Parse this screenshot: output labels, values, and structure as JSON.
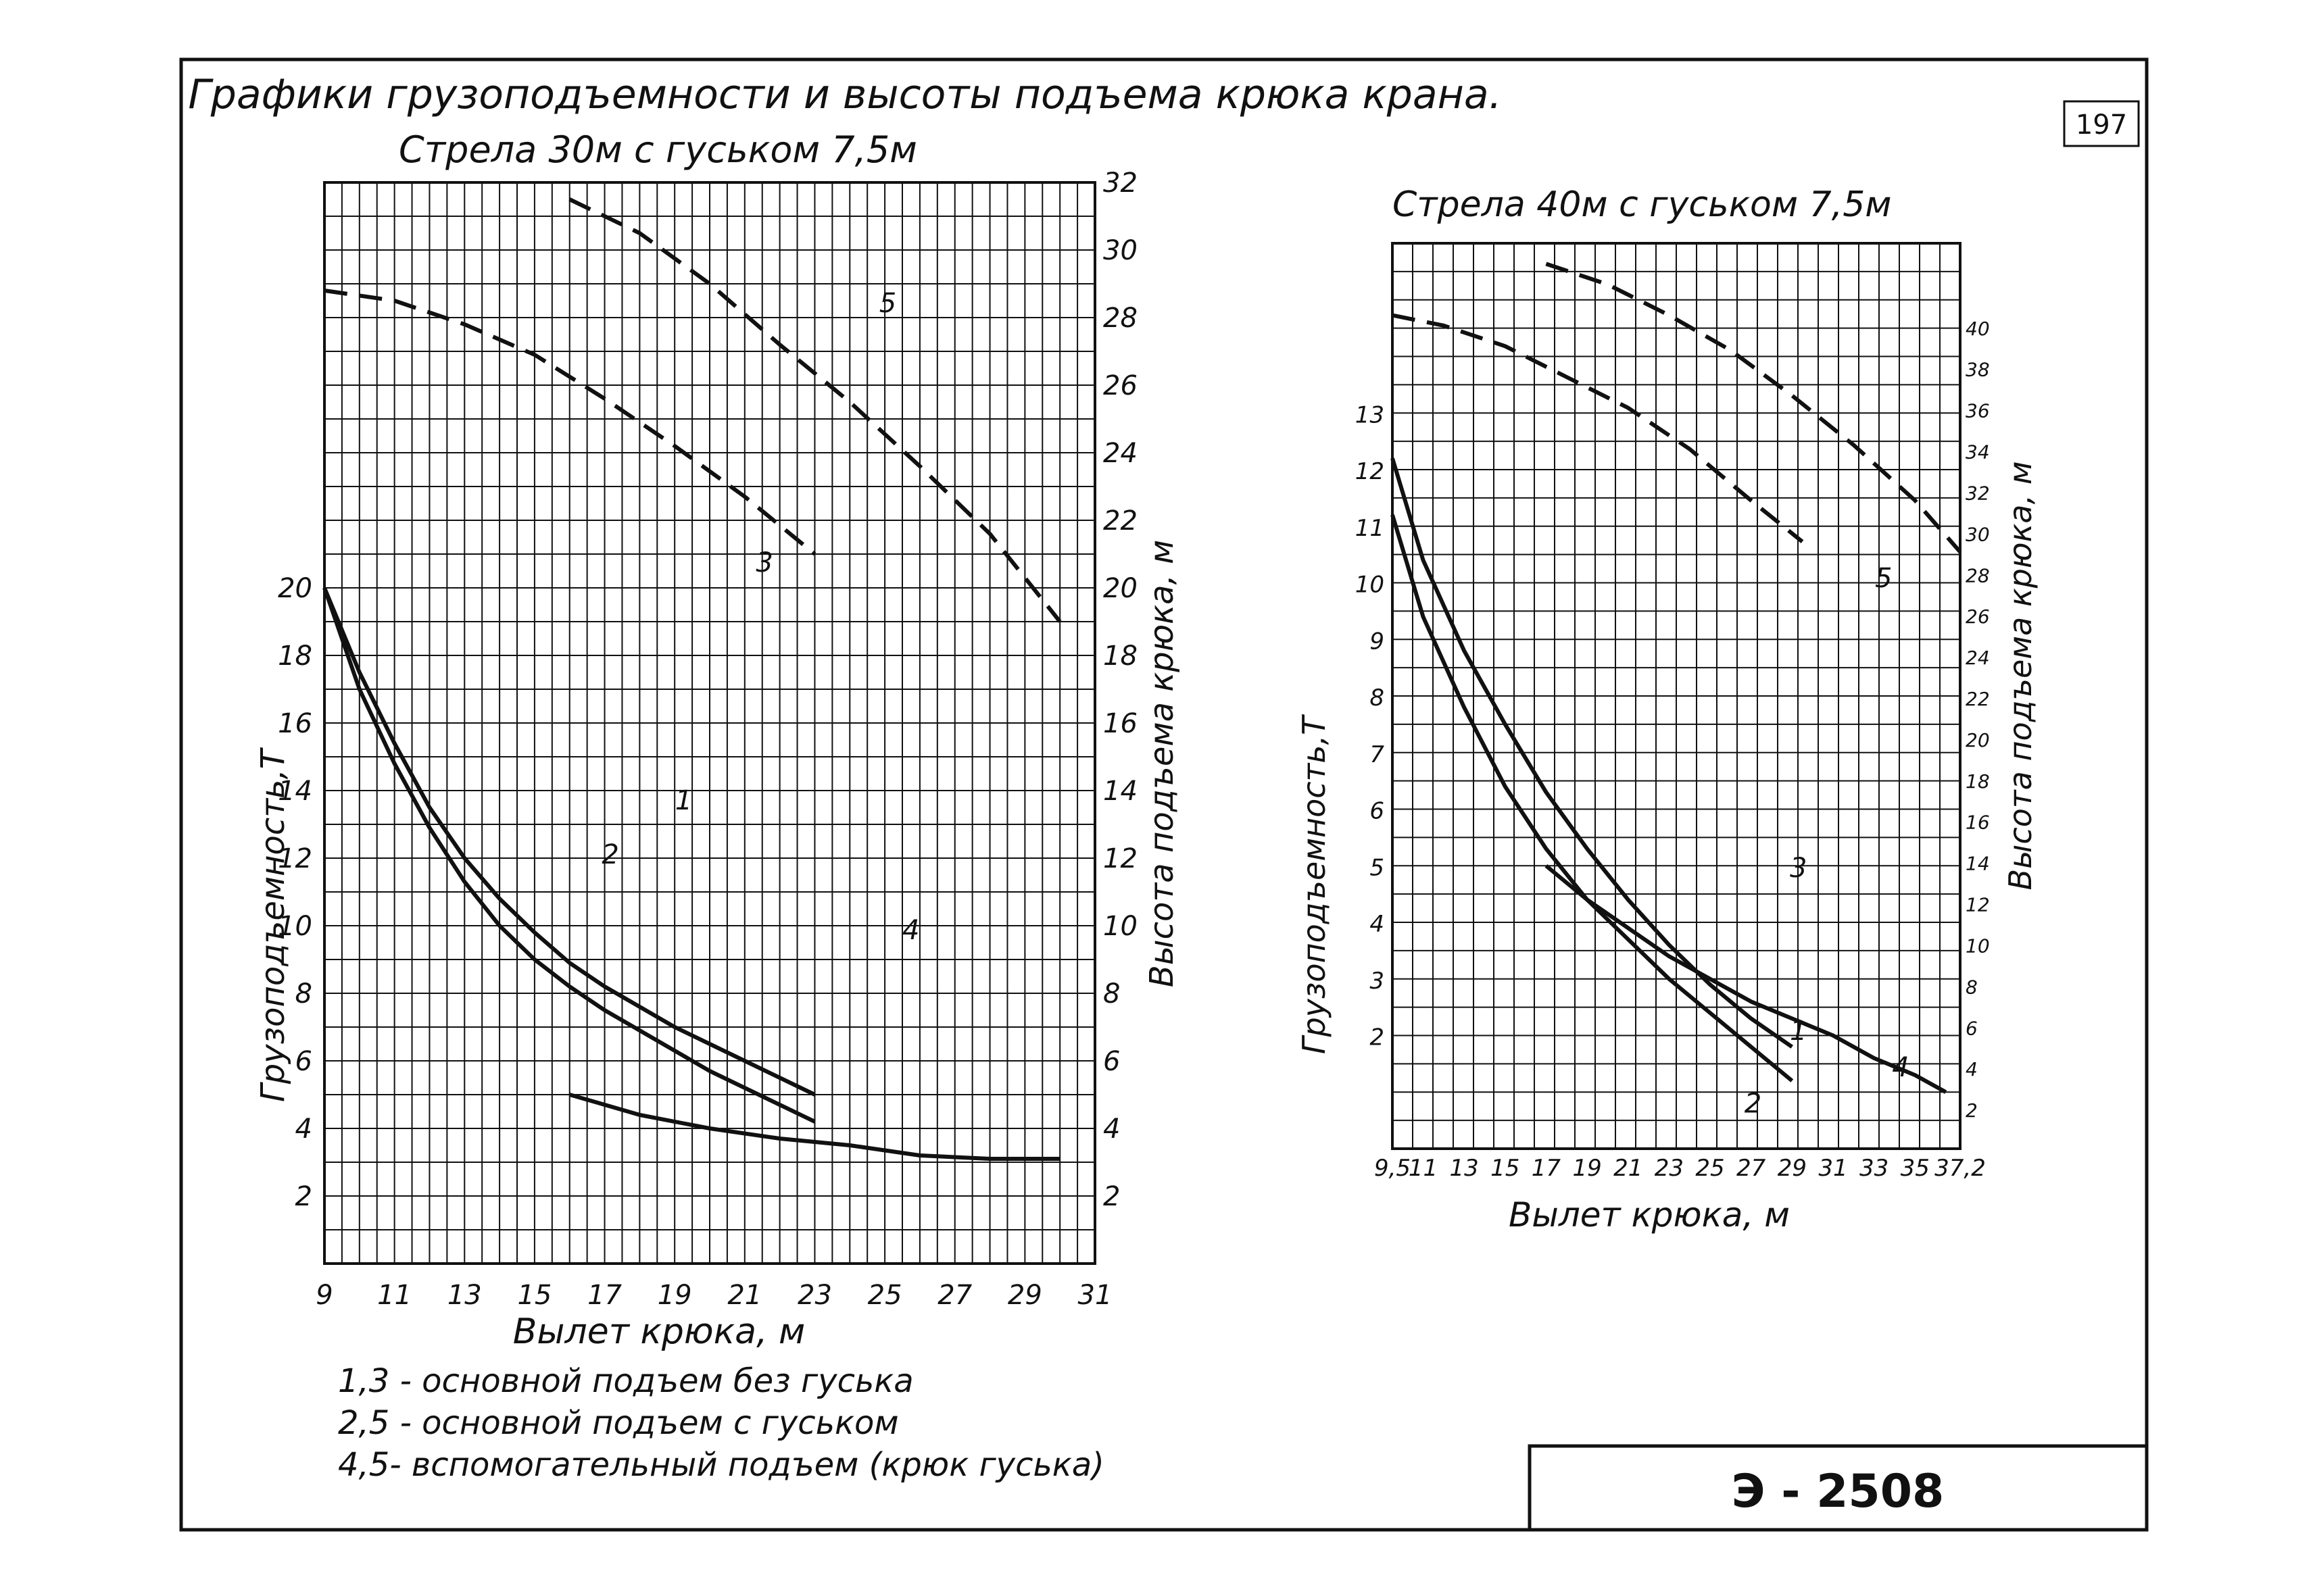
{
  "page_number": "197",
  "main_title": "Графики грузоподъемности и высоты подъема крюка крана.",
  "legend": [
    "1,3 - основной подъем без гуська",
    "2,5 - основной подъем с гуськом",
    "4,5- вспомогательный подъем (крюк гуська)"
  ],
  "stamp": "Э - 2508",
  "colors": {
    "ink": "#111111",
    "paper": "#ffffff"
  },
  "chart_data": [
    {
      "type": "line",
      "title": "Стрела 30м с гуськом 7,5м",
      "xlabel": "Вылет крюка, м",
      "ylabel_left": "Грузоподъемность,Т",
      "ylabel_right": "Высота подъема крюка, м",
      "xlim": [
        9,
        31
      ],
      "ylim_left": [
        0,
        32
      ],
      "ylim_right": [
        0,
        32
      ],
      "x_ticks": [
        "9",
        "11",
        "13",
        "15",
        "17",
        "19",
        "21",
        "23",
        "25",
        "27",
        "29",
        "31"
      ],
      "y_left_ticks": [
        "2",
        "4",
        "6",
        "8",
        "10",
        "12",
        "14",
        "16",
        "18",
        "20"
      ],
      "y_right_ticks": [
        "2",
        "4",
        "6",
        "8",
        "10",
        "12",
        "14",
        "16",
        "18",
        "20",
        "22",
        "24",
        "26",
        "28",
        "30",
        "32"
      ],
      "grid": true,
      "series": [
        {
          "name": "1",
          "axis": "left",
          "dash": false,
          "x": [
            9,
            10,
            11,
            12,
            13,
            14,
            15,
            16,
            17,
            18,
            19,
            20,
            21,
            22,
            23
          ],
          "y": [
            20,
            17.5,
            15.4,
            13.5,
            12,
            10.8,
            9.8,
            8.9,
            8.2,
            7.6,
            7,
            6.5,
            6,
            5.5,
            5
          ]
        },
        {
          "name": "2",
          "axis": "left",
          "dash": false,
          "x": [
            9,
            10,
            11,
            12,
            13,
            14,
            15,
            16,
            17,
            18,
            19,
            20,
            21,
            22,
            23
          ],
          "y": [
            20,
            17,
            14.8,
            12.9,
            11.3,
            10,
            9,
            8.2,
            7.5,
            6.9,
            6.3,
            5.7,
            5.2,
            4.7,
            4.2
          ]
        },
        {
          "name": "4",
          "axis": "left",
          "dash": false,
          "x": [
            16,
            18,
            20,
            22,
            24,
            26,
            28,
            30
          ],
          "y": [
            5,
            4.4,
            4,
            3.7,
            3.5,
            3.2,
            3.1,
            3.1
          ]
        },
        {
          "name": "3",
          "axis": "right",
          "dash": true,
          "x": [
            9,
            11,
            13,
            15,
            17,
            19,
            21,
            23
          ],
          "y": [
            28.8,
            28.5,
            27.8,
            26.9,
            25.6,
            24.2,
            22.7,
            21
          ]
        },
        {
          "name": "5",
          "axis": "right",
          "dash": true,
          "x": [
            16,
            18,
            20,
            22,
            24,
            26,
            28,
            30
          ],
          "y": [
            31.5,
            30.5,
            29,
            27.2,
            25.5,
            23.6,
            21.6,
            19
          ]
        }
      ]
    },
    {
      "type": "line",
      "title": "Стрела 40м с гуськом 7,5м",
      "xlabel": "Вылет крюка, м",
      "ylabel_left": "Грузоподъемность,Т",
      "ylabel_right": "Высота подъема крюка, м",
      "xlim": [
        9.5,
        37.2
      ],
      "ylim_left": [
        0,
        16
      ],
      "ylim_right": [
        0,
        44
      ],
      "x_ticks": [
        "9,5",
        "11",
        "13",
        "15",
        "17",
        "19",
        "21",
        "23",
        "25",
        "27",
        "29",
        "31",
        "33",
        "35",
        "37,2"
      ],
      "y_left_ticks": [
        "2",
        "3",
        "4",
        "5",
        "6",
        "7",
        "8",
        "9",
        "10",
        "11",
        "12",
        "13"
      ],
      "y_right_ticks": [
        "2",
        "4",
        "6",
        "8",
        "10",
        "12",
        "14",
        "16",
        "18",
        "20",
        "22",
        "24",
        "26",
        "28",
        "30",
        "32",
        "34",
        "36",
        "38",
        "40"
      ],
      "grid": true,
      "series": [
        {
          "name": "1",
          "axis": "left",
          "dash": false,
          "x": [
            9.5,
            11,
            13,
            15,
            17,
            19,
            21,
            23,
            25,
            27,
            29
          ],
          "y": [
            12.2,
            10.4,
            8.8,
            7.5,
            6.3,
            5.3,
            4.4,
            3.6,
            2.9,
            2.3,
            1.8
          ]
        },
        {
          "name": "2",
          "axis": "left",
          "dash": false,
          "x": [
            9.5,
            11,
            13,
            15,
            17,
            19,
            21,
            23,
            25,
            27,
            29
          ],
          "y": [
            11.2,
            9.4,
            7.8,
            6.4,
            5.3,
            4.4,
            3.7,
            3,
            2.4,
            1.8,
            1.2
          ]
        },
        {
          "name": "4",
          "axis": "left",
          "dash": false,
          "x": [
            17,
            19,
            21,
            23,
            25,
            27,
            29,
            31,
            33,
            35,
            36.5
          ],
          "y": [
            5,
            4.4,
            3.9,
            3.4,
            3,
            2.6,
            2.3,
            2,
            1.6,
            1.3,
            1
          ]
        },
        {
          "name": "3",
          "axis": "right",
          "dash": true,
          "x": [
            9.5,
            12,
            15,
            18,
            21,
            24,
            27,
            29.5
          ],
          "y": [
            40.5,
            40,
            39,
            37.5,
            36,
            34,
            31.5,
            29.5
          ]
        },
        {
          "name": "5",
          "axis": "right",
          "dash": true,
          "x": [
            17,
            20,
            23,
            26,
            29,
            32,
            35,
            37.2
          ],
          "y": [
            43,
            42,
            40.5,
            38.8,
            36.6,
            34.2,
            31.5,
            29
          ]
        }
      ]
    }
  ]
}
